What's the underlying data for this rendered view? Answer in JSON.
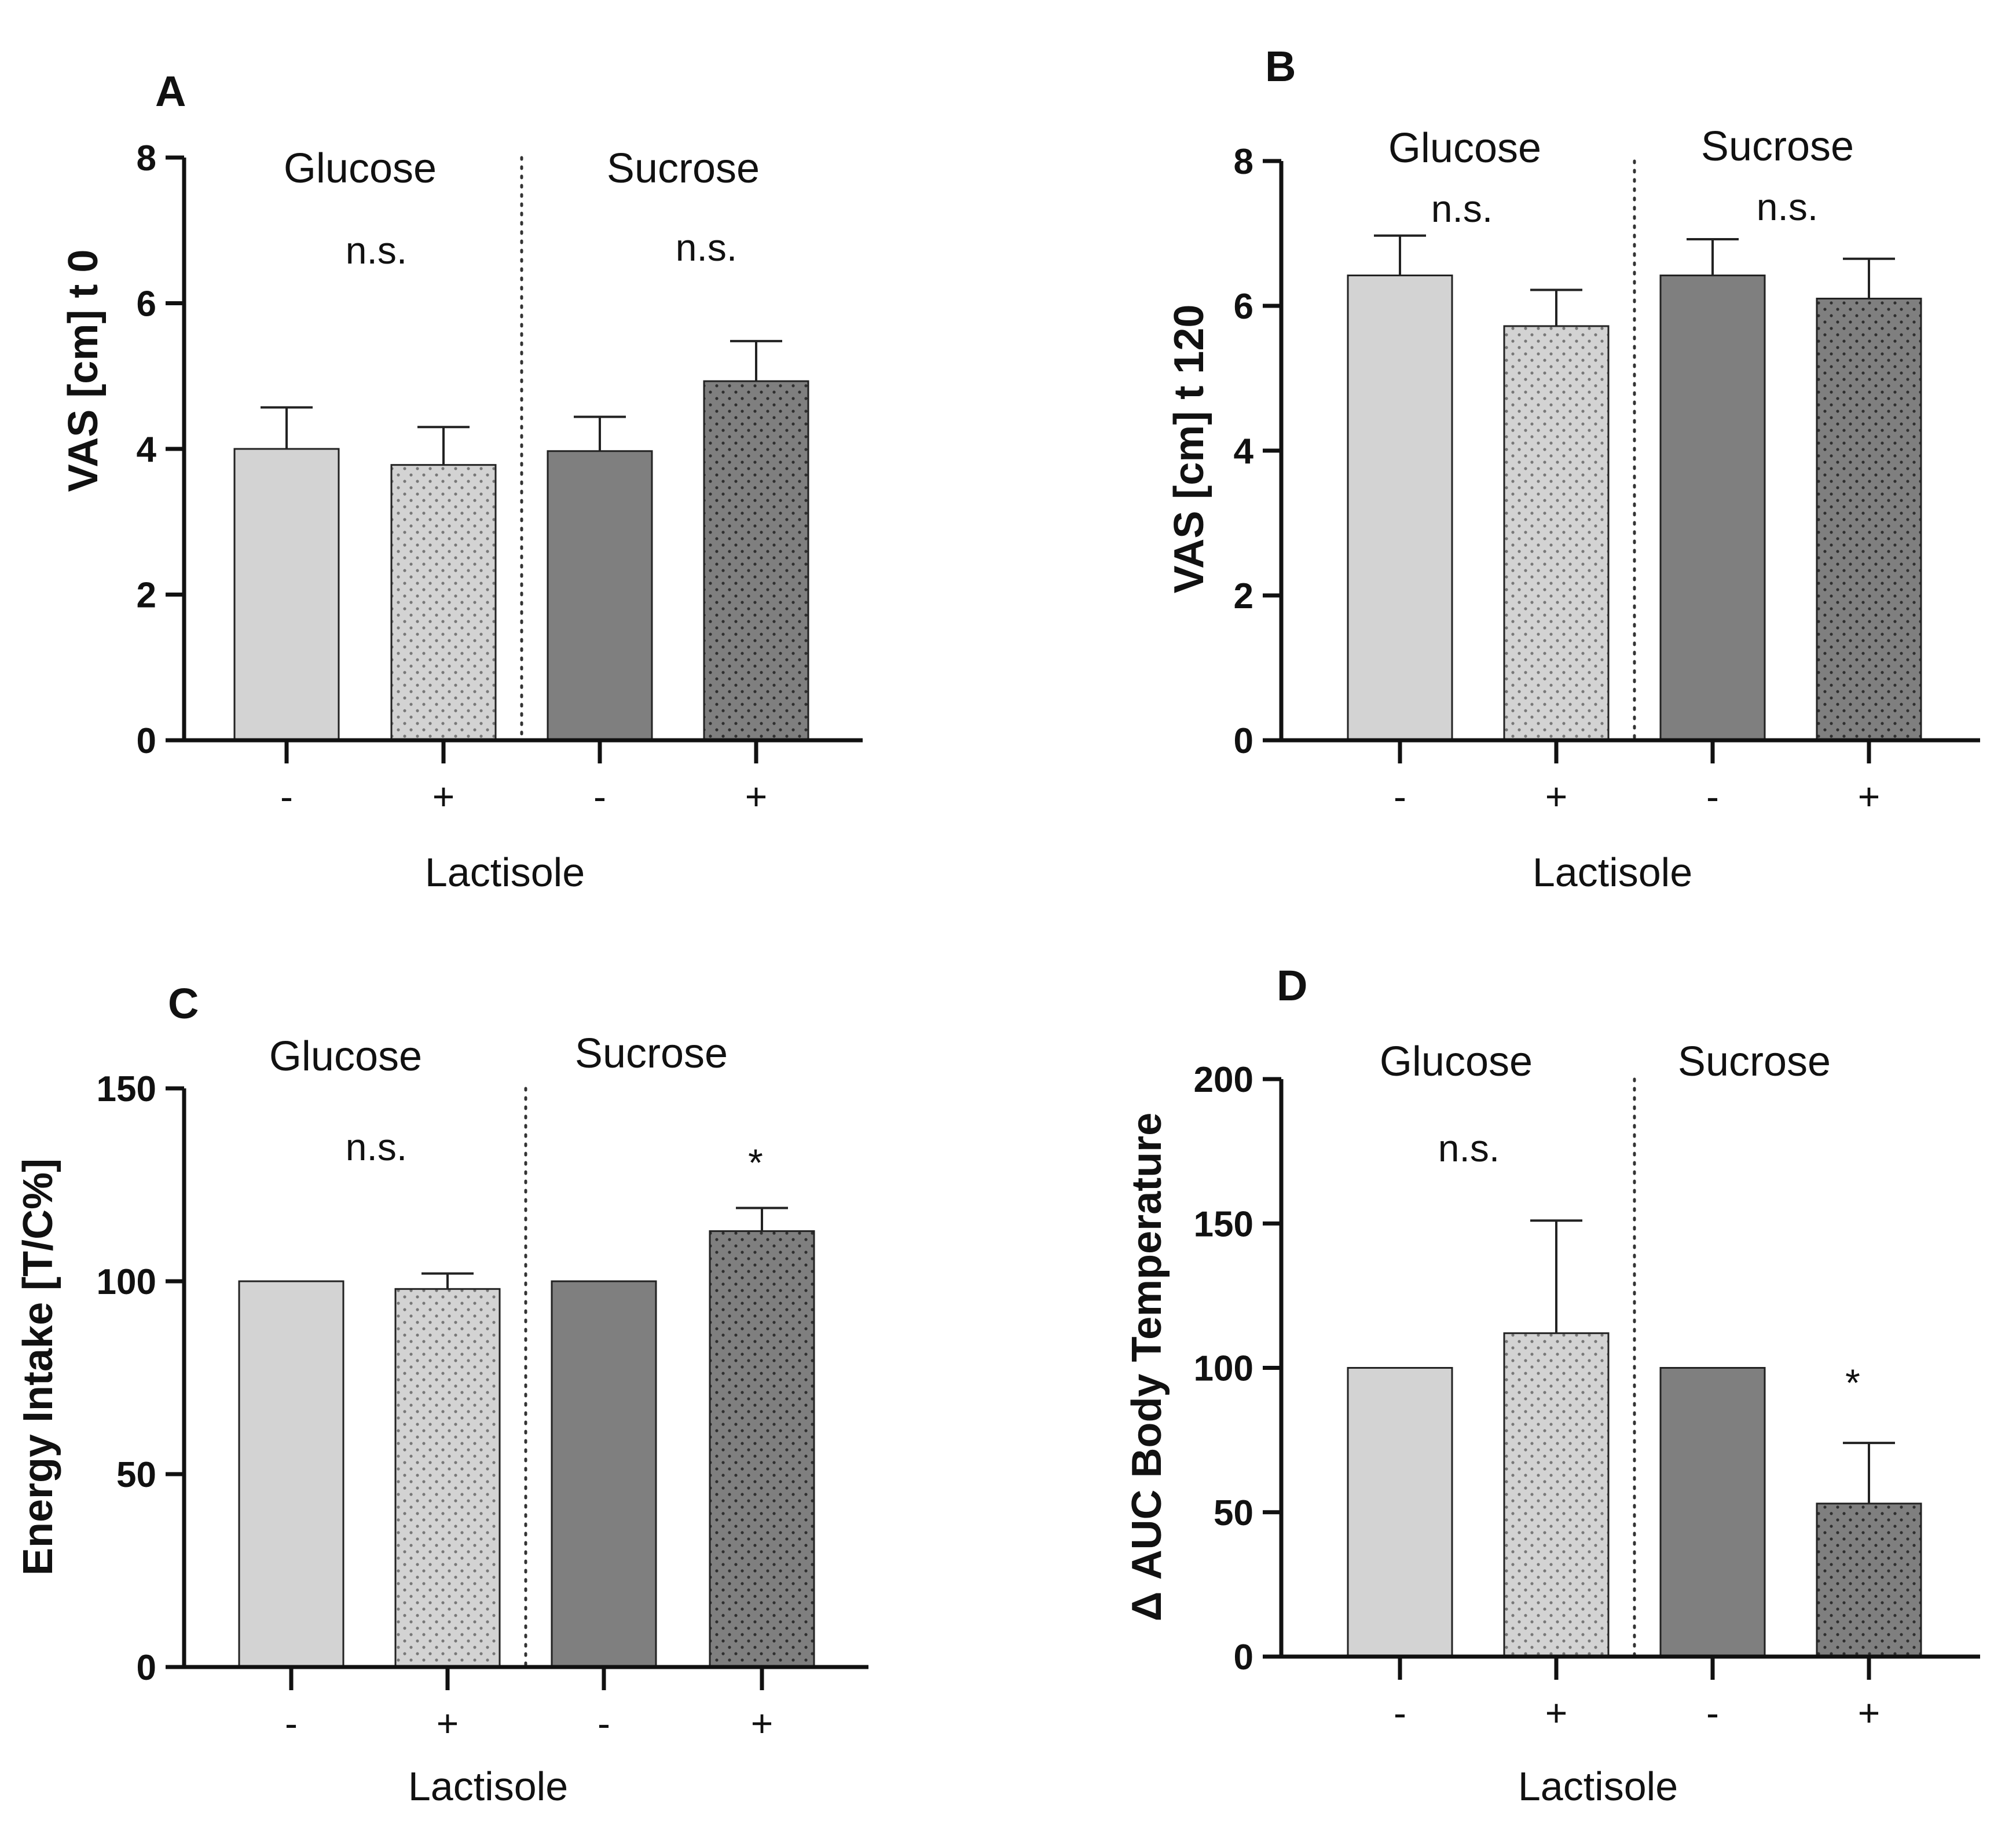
{
  "figure": {
    "colors": {
      "glucose_fill": "#d3d3d3",
      "sucrose_fill": "#7f7f7f",
      "dot_light": "#777777",
      "dot_dark": "#2e2e2e",
      "axis": "#111111"
    }
  },
  "chart_data": [
    {
      "panel": "A",
      "type": "bar",
      "ylabel": "VAS [cm] t 0",
      "xlabel": "Lactisole",
      "ylim": [
        0,
        8
      ],
      "yticks": [
        0,
        2,
        4,
        6,
        8
      ],
      "categories": [
        "-",
        "+",
        "-",
        "+"
      ],
      "groups": [
        {
          "name": "Glucose",
          "significance": "n.s."
        },
        {
          "name": "Sucrose",
          "significance": "n.s."
        }
      ],
      "values": [
        4.0,
        3.78,
        3.97,
        4.93
      ],
      "errors": [
        0.57,
        0.52,
        0.47,
        0.55
      ]
    },
    {
      "panel": "B",
      "type": "bar",
      "ylabel": "VAS [cm] t 120",
      "xlabel": "Lactisole",
      "ylim": [
        0,
        8
      ],
      "yticks": [
        0,
        2,
        4,
        6,
        8
      ],
      "categories": [
        "-",
        "+",
        "-",
        "+"
      ],
      "groups": [
        {
          "name": "Glucose",
          "significance": "n.s."
        },
        {
          "name": "Sucrose",
          "significance": "n.s."
        }
      ],
      "values": [
        6.42,
        5.72,
        6.42,
        6.1
      ],
      "errors": [
        0.55,
        0.5,
        0.5,
        0.55
      ]
    },
    {
      "panel": "C",
      "type": "bar",
      "ylabel": "Energy Intake [T/C%]",
      "xlabel": "Lactisole",
      "ylim": [
        0,
        150
      ],
      "yticks": [
        0,
        50,
        100,
        150
      ],
      "categories": [
        "-",
        "+",
        "-",
        "+"
      ],
      "groups": [
        {
          "name": "Glucose",
          "significance": "n.s."
        },
        {
          "name": "Sucrose",
          "significance": "*"
        }
      ],
      "values": [
        100,
        98,
        100,
        113
      ],
      "errors": [
        0,
        4,
        0,
        6
      ]
    },
    {
      "panel": "D",
      "type": "bar",
      "ylabel": "Δ AUC Body Temperature",
      "xlabel": "Lactisole",
      "ylim": [
        0,
        200
      ],
      "yticks": [
        0,
        50,
        100,
        150,
        200
      ],
      "categories": [
        "-",
        "+",
        "-",
        "+"
      ],
      "groups": [
        {
          "name": "Glucose",
          "significance": "n.s."
        },
        {
          "name": "Sucrose",
          "significance": "*"
        }
      ],
      "values": [
        100,
        112,
        100,
        53
      ],
      "errors": [
        0,
        39,
        0,
        21
      ]
    }
  ]
}
